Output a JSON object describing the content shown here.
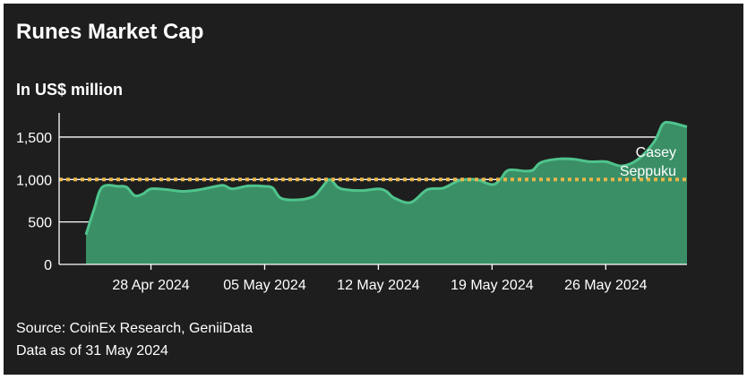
{
  "title": "Runes Market Cap",
  "subtitle": "In US$ million",
  "footer": {
    "source": "Source: CoinEx Research, GeniiData",
    "as_of": "Data as of 31 May 2024"
  },
  "colors": {
    "background": "#1e1e1e",
    "area_fill": "#3a8f66",
    "line": "#4fc48c",
    "reference_line": "#e8b64a",
    "grid": "#ffffff",
    "text": "#ffffff"
  },
  "chart_data": {
    "type": "area",
    "title": "Runes Market Cap",
    "subtitle": "In US$ million",
    "xlabel": "",
    "ylabel": "",
    "ylim": [
      0,
      1700
    ],
    "y_ticks": [
      0,
      500,
      1000,
      1500
    ],
    "y_tick_labels": [
      "0",
      "500",
      "1,000",
      "1,500"
    ],
    "x_ticks": [
      "2024-04-28",
      "2024-05-05",
      "2024-05-12",
      "2024-05-19",
      "2024-05-26"
    ],
    "x_tick_labels": [
      "28 Apr 2024",
      "05 May 2024",
      "12 May 2024",
      "19 May 2024",
      "26 May 2024"
    ],
    "grid": true,
    "reference_line": {
      "y": 1000,
      "style": "dotted"
    },
    "annotation": {
      "lines": [
        "Casey",
        "Seppuku"
      ],
      "near_x": "2024-05-30"
    },
    "series": [
      {
        "points": [
          [
            "2024-04-24",
            350
          ],
          [
            "2024-04-24T12:00",
            650
          ],
          [
            "2024-04-25",
            910
          ],
          [
            "2024-04-26",
            920
          ],
          [
            "2024-04-26T12:00",
            910
          ],
          [
            "2024-04-27",
            810
          ],
          [
            "2024-04-27T12:00",
            830
          ],
          [
            "2024-04-28",
            890
          ],
          [
            "2024-04-29",
            880
          ],
          [
            "2024-04-30",
            860
          ],
          [
            "2024-05-01",
            880
          ],
          [
            "2024-05-02",
            920
          ],
          [
            "2024-05-02T12:00",
            930
          ],
          [
            "2024-05-03",
            890
          ],
          [
            "2024-05-04",
            925
          ],
          [
            "2024-05-05",
            920
          ],
          [
            "2024-05-05T12:00",
            900
          ],
          [
            "2024-05-06",
            780
          ],
          [
            "2024-05-07",
            760
          ],
          [
            "2024-05-08",
            800
          ],
          [
            "2024-05-08T12:00",
            900
          ],
          [
            "2024-05-09",
            1000
          ],
          [
            "2024-05-09T12:00",
            910
          ],
          [
            "2024-05-10",
            880
          ],
          [
            "2024-05-11",
            870
          ],
          [
            "2024-05-12",
            890
          ],
          [
            "2024-05-12T12:00",
            860
          ],
          [
            "2024-05-13",
            780
          ],
          [
            "2024-05-14",
            730
          ],
          [
            "2024-05-15",
            880
          ],
          [
            "2024-05-16",
            900
          ],
          [
            "2024-05-17",
            990
          ],
          [
            "2024-05-18",
            1000
          ],
          [
            "2024-05-19",
            940
          ],
          [
            "2024-05-19T12:00",
            1000
          ],
          [
            "2024-05-20",
            1110
          ],
          [
            "2024-05-21",
            1100
          ],
          [
            "2024-05-21T12:00",
            1110
          ],
          [
            "2024-05-22",
            1200
          ],
          [
            "2024-05-23",
            1240
          ],
          [
            "2024-05-24",
            1240
          ],
          [
            "2024-05-25",
            1210
          ],
          [
            "2024-05-26",
            1210
          ],
          [
            "2024-05-27",
            1160
          ],
          [
            "2024-05-28",
            1240
          ],
          [
            "2024-05-29",
            1450
          ],
          [
            "2024-05-29T12:00",
            1650
          ],
          [
            "2024-05-30",
            1670
          ],
          [
            "2024-05-31",
            1620
          ]
        ]
      }
    ]
  }
}
